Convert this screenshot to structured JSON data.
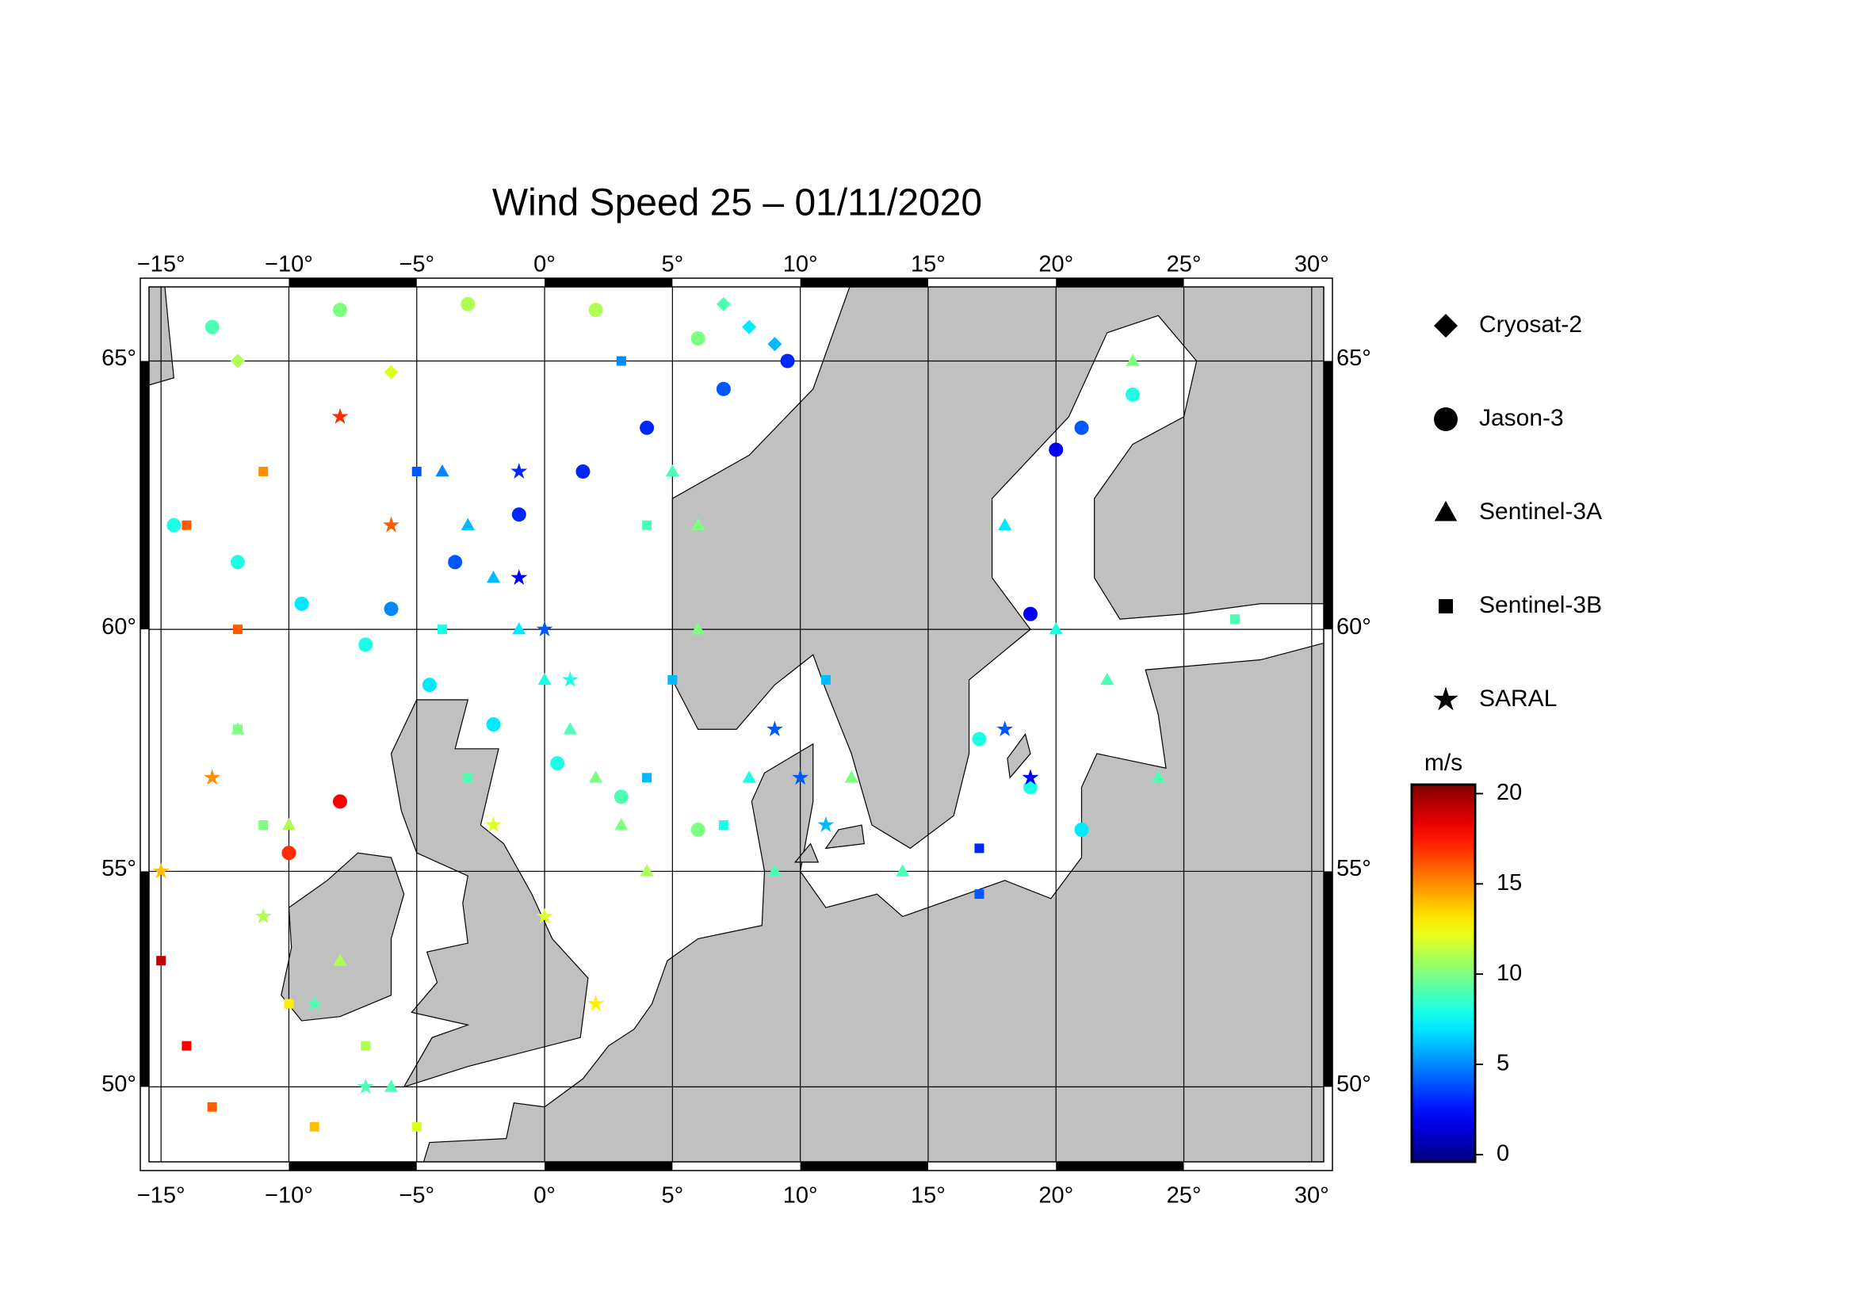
{
  "chart_data": {
    "type": "scatter",
    "title": "Wind Speed 25 – 01/11/2020",
    "xlim": [
      -15.47,
      30.47
    ],
    "ylim": [
      48.1,
      66.3
    ],
    "xticks": [
      {
        "value": -15,
        "label": "−15°"
      },
      {
        "value": -10,
        "label": "−10°"
      },
      {
        "value": -5,
        "label": "−5°"
      },
      {
        "value": 0,
        "label": "0°"
      },
      {
        "value": 5,
        "label": "5°"
      },
      {
        "value": 10,
        "label": "10°"
      },
      {
        "value": 15,
        "label": "15°"
      },
      {
        "value": 20,
        "label": "20°"
      },
      {
        "value": 25,
        "label": "25°"
      },
      {
        "value": 30,
        "label": "30°"
      }
    ],
    "yticks": [
      {
        "value": 50,
        "label": "50°"
      },
      {
        "value": 55,
        "label": "55°"
      },
      {
        "value": 60,
        "label": "60°"
      },
      {
        "value": 65,
        "label": "65°"
      }
    ],
    "grid": true,
    "colorbar": {
      "title": "m/s",
      "colormap": "jet",
      "lim": [
        -0.4,
        20.5
      ],
      "ticks": [
        0,
        5,
        10,
        15,
        20
      ]
    },
    "series": [
      {
        "name": "Cryosat-2",
        "marker": "diamond",
        "x": [
          7,
          8,
          9,
          9.5,
          -12,
          -6
        ],
        "y": [
          66,
          65.6,
          65.3,
          65,
          65,
          64.8
        ],
        "values": [
          9,
          7,
          6,
          5,
          11,
          12
        ]
      },
      {
        "name": "Jason-3",
        "marker": "circle",
        "x": [
          -14.5,
          -12,
          -9.5,
          -7,
          -4.5,
          -2,
          0.5,
          3,
          6,
          -6,
          -3.5,
          -1,
          1.5,
          4,
          7,
          9.5,
          -13,
          -8,
          -3,
          2,
          6,
          -10,
          -8,
          17,
          19,
          21,
          19,
          20,
          21,
          23
        ],
        "y": [
          62,
          61.3,
          60.5,
          59.7,
          58.9,
          58.1,
          57.3,
          56.6,
          55.9,
          60.4,
          61.3,
          62.2,
          63,
          63.8,
          64.5,
          65,
          65.6,
          65.9,
          66,
          65.9,
          65.4,
          55.4,
          56.5,
          57.8,
          56.8,
          55.9,
          60.3,
          63.4,
          63.8,
          64.4
        ],
        "values": [
          8,
          8,
          7,
          8,
          7,
          7,
          8,
          9,
          10,
          5,
          4,
          3,
          3,
          3,
          4,
          3,
          9,
          10,
          11,
          11,
          10,
          17,
          18,
          8,
          8,
          7,
          2,
          2,
          4,
          8
        ]
      },
      {
        "name": "Sentinel-3A",
        "marker": "triangle",
        "x": [
          -4,
          -3,
          -2,
          -1,
          0,
          1,
          2,
          3,
          4,
          5,
          6,
          6,
          8,
          9,
          -12,
          -10,
          -8,
          -6,
          18,
          20,
          22,
          24,
          23,
          12,
          14
        ],
        "y": [
          63,
          62,
          61,
          60,
          59,
          58,
          57,
          56,
          55,
          63,
          62,
          60,
          57,
          55,
          58,
          56,
          53,
          50,
          62,
          60,
          59,
          57,
          65,
          57,
          55
        ],
        "values": [
          5,
          6,
          6,
          7,
          8,
          9,
          10,
          10,
          11,
          9,
          10,
          10,
          8,
          9,
          10,
          11,
          11,
          9,
          7,
          8,
          9,
          9,
          10,
          10,
          9
        ]
      },
      {
        "name": "Sentinel-3B",
        "marker": "square",
        "x": [
          -15,
          -14,
          -13,
          -12,
          -11,
          -10,
          -9,
          -5,
          -4,
          -3,
          -7,
          -5,
          3,
          4,
          5,
          4,
          7,
          17,
          17,
          11,
          27,
          -14,
          -12,
          -11
        ],
        "y": [
          53,
          51,
          49.5,
          58,
          56,
          52,
          49,
          63,
          60,
          57,
          51,
          49,
          65,
          62,
          59,
          57,
          56,
          55.5,
          54.5,
          59,
          60.2,
          62,
          60,
          63
        ],
        "values": [
          19,
          18,
          16,
          10,
          10,
          13,
          14,
          4,
          8,
          9,
          11,
          12,
          5,
          9,
          6,
          6,
          8,
          3,
          4,
          6,
          9,
          16,
          16,
          15
        ]
      },
      {
        "name": "SARAL",
        "marker": "star",
        "x": [
          -15,
          -13,
          -11,
          -9,
          -7,
          -1,
          -1,
          0,
          1,
          -2,
          0,
          2,
          9,
          10,
          11,
          18,
          19,
          -8,
          -6
        ],
        "y": [
          55,
          57,
          54,
          52,
          50,
          63,
          61,
          60,
          59,
          56,
          54,
          52,
          58,
          57,
          56,
          58,
          57,
          64,
          62
        ],
        "values": [
          14,
          15,
          11,
          9,
          9,
          3,
          2,
          4,
          8,
          12,
          12,
          13,
          4,
          4,
          6,
          4,
          2,
          17,
          16
        ]
      }
    ]
  }
}
